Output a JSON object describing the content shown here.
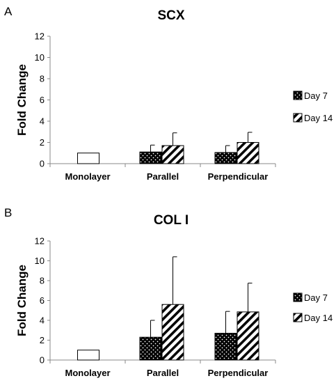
{
  "chart_data": [
    {
      "type": "bar",
      "panel_label": "A",
      "title": "SCX",
      "ylabel": "Fold Change",
      "xlabel": "",
      "ylim": [
        0,
        12
      ],
      "yticks": [
        0,
        2,
        4,
        6,
        8,
        10,
        12
      ],
      "categories": [
        "Monolayer",
        "Parallel",
        "Perpendicular"
      ],
      "control": {
        "category": "Monolayer",
        "value": 1.0
      },
      "series": [
        {
          "name": "Day 7",
          "pattern": "dots",
          "values": [
            null,
            1.1,
            1.05
          ],
          "errors": [
            null,
            0.65,
            0.65
          ]
        },
        {
          "name": "Day 14",
          "pattern": "stripes",
          "values": [
            null,
            1.7,
            2.0
          ],
          "errors": [
            null,
            1.2,
            0.95
          ]
        }
      ],
      "legend_position": "right"
    },
    {
      "type": "bar",
      "panel_label": "B",
      "title": "COL I",
      "ylabel": "Fold Change",
      "xlabel": "",
      "ylim": [
        0,
        12
      ],
      "yticks": [
        0,
        2,
        4,
        6,
        8,
        10,
        12
      ],
      "categories": [
        "Monolayer",
        "Parallel",
        "Perpendicular"
      ],
      "control": {
        "category": "Monolayer",
        "value": 1.0
      },
      "series": [
        {
          "name": "Day 7",
          "pattern": "dots",
          "values": [
            null,
            2.3,
            2.7
          ],
          "errors": [
            null,
            1.7,
            2.2
          ]
        },
        {
          "name": "Day 14",
          "pattern": "stripes",
          "values": [
            null,
            5.6,
            4.85
          ],
          "errors": [
            null,
            4.8,
            2.9
          ]
        }
      ],
      "legend_position": "right"
    }
  ]
}
